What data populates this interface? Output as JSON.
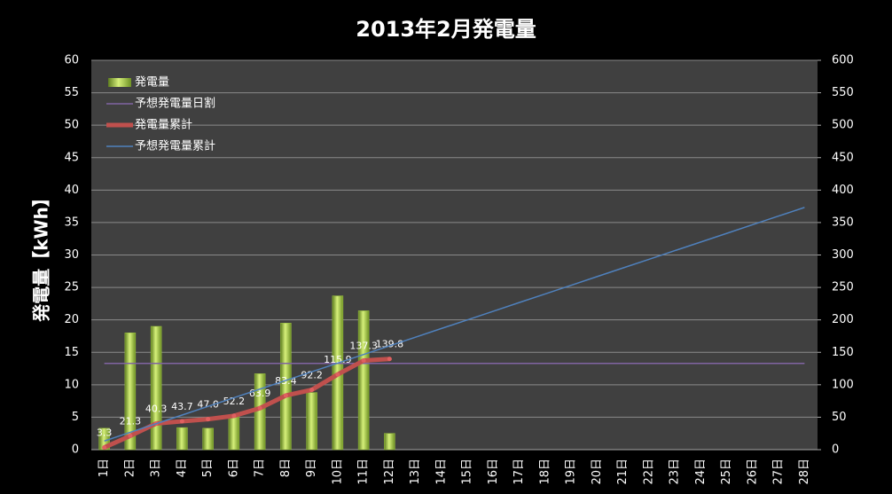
{
  "chart_data": {
    "type": "bar",
    "title": "2013年2月発電量",
    "y_label": "発電量【kWh】",
    "categories": [
      "1日",
      "2日",
      "3日",
      "4日",
      "5日",
      "6日",
      "7日",
      "8日",
      "9日",
      "10日",
      "11日",
      "12日",
      "13日",
      "14日",
      "15日",
      "16日",
      "17日",
      "18日",
      "19日",
      "20日",
      "21日",
      "22日",
      "23日",
      "24日",
      "25日",
      "26日",
      "27日",
      "28日"
    ],
    "ylim": [
      0,
      60
    ],
    "yticks": [
      0,
      5,
      10,
      15,
      20,
      25,
      30,
      35,
      40,
      45,
      50,
      55,
      60
    ],
    "y2lim": [
      0,
      600
    ],
    "y2ticks": [
      0,
      50,
      100,
      150,
      200,
      250,
      300,
      350,
      400,
      450,
      500,
      550,
      600
    ],
    "grid": true,
    "legend": "top-left",
    "series": [
      {
        "name": "発電量",
        "type": "bar",
        "color": "#9bc53d",
        "values": [
          3.3,
          18.0,
          19.0,
          3.4,
          3.3,
          5.2,
          11.7,
          19.5,
          8.8,
          23.7,
          21.4,
          2.5,
          null,
          null,
          null,
          null,
          null,
          null,
          null,
          null,
          null,
          null,
          null,
          null,
          null,
          null,
          null,
          null
        ]
      },
      {
        "name": "予想発電量日割",
        "type": "line",
        "color": "#8064a2",
        "values": [
          13.3,
          13.3,
          13.3,
          13.3,
          13.3,
          13.3,
          13.3,
          13.3,
          13.3,
          13.3,
          13.3,
          13.3,
          13.3,
          13.3,
          13.3,
          13.3,
          13.3,
          13.3,
          13.3,
          13.3,
          13.3,
          13.3,
          13.3,
          13.3,
          13.3,
          13.3,
          13.3,
          13.3
        ]
      },
      {
        "name": "発電量累計",
        "type": "line",
        "axis": "y2",
        "color": "#c0504d",
        "markers": true,
        "values": [
          3.3,
          21.3,
          40.3,
          43.7,
          47.0,
          52.2,
          63.9,
          83.4,
          92.2,
          115.9,
          137.3,
          139.8,
          null,
          null,
          null,
          null,
          null,
          null,
          null,
          null,
          null,
          null,
          null,
          null,
          null,
          null,
          null,
          null
        ],
        "value_labels": [
          "3.3",
          "21.3",
          "40.3",
          "43.7",
          "47.0",
          "52.2",
          "63.9",
          "83.4",
          "92.2",
          "115.9",
          "137.3",
          "139.8",
          null,
          null,
          null,
          null,
          null,
          null,
          null,
          null,
          null,
          null,
          null,
          null,
          null,
          null,
          null,
          null
        ]
      },
      {
        "name": "予想発電量累計",
        "type": "line",
        "axis": "y2",
        "color": "#4f81bd",
        "values": [
          13.3,
          26.7,
          40.0,
          53.3,
          66.7,
          80.0,
          93.3,
          106.7,
          120.0,
          133.3,
          146.7,
          160.0,
          173.3,
          186.7,
          200.0,
          213.3,
          226.7,
          240.0,
          253.3,
          266.7,
          280.0,
          293.3,
          306.7,
          320.0,
          333.3,
          346.7,
          360.0,
          373.3
        ]
      }
    ]
  }
}
